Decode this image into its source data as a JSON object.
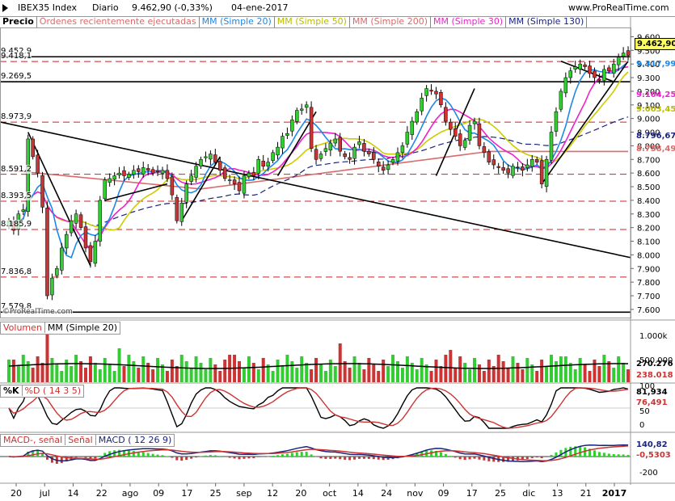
{
  "header": {
    "symbol": "IBEX35 Index",
    "period": "Diario",
    "last": "9.462,90 (-0,33%)",
    "date": "04-ene-2017",
    "site": "www.ProRealTime.com"
  },
  "legend": {
    "precio": "Precio",
    "ordenes": "Órdenes recientemente ejecutadas",
    "mm20": "MM (Simple 20)",
    "mm50": "MM (Simple 50)",
    "mm200": "MM (Simple 200)",
    "mm30": "MM (Simple 30)",
    "mm130": "MM (Simple 130)"
  },
  "colors": {
    "up": "#33cc33",
    "down": "#cc3333",
    "mm20": "#1e88e5",
    "mm50": "#cccc00",
    "mm200": "#d96b6b",
    "mm30": "#ee22cc",
    "mm130": "#1a237e",
    "level": "#cc2222"
  },
  "watermark": "©ProRealTime.com",
  "levels": [
    "9.452,9",
    "9.418,1",
    "9.269,5",
    "8.973,9",
    "8.591,2",
    "8.393,5",
    "8.185,9",
    "7.836,8",
    "7.579,8"
  ],
  "price_tags": {
    "last": "9.462,90",
    "mm20": "9.317,99",
    "mm30": "9.104,25",
    "mm50": "9.003,45",
    "mm130": "8.796,67",
    "mm200": "8.758,49"
  },
  "volume": {
    "title": "Volumen",
    "ma_title": "MM (Simple 20)",
    "axis": [
      "1.000k",
      "500.000"
    ],
    "tags": [
      "270.276",
      "238.018"
    ]
  },
  "stoch": {
    "title": "%K",
    "d_title": "%D ( 14 3 5)",
    "axis": [
      "100",
      "50",
      "0"
    ],
    "tags": [
      "81,934",
      "76,491"
    ]
  },
  "macd": {
    "title": "MACD-, señal",
    "signal_title": "Señal",
    "macd_title": "MACD ( 12 26 9)",
    "axis": [
      "-200"
    ],
    "tags": [
      "140,82",
      "-0,5303"
    ]
  },
  "chart_data": {
    "type": "candlestick",
    "y_ticks": [
      9600,
      9500,
      9400,
      9300,
      9200,
      9100,
      9000,
      8900,
      8800,
      8700,
      8600,
      8500,
      8400,
      8300,
      8200,
      8100,
      8000,
      7900,
      7800,
      7700,
      7600
    ],
    "ylim": [
      7540,
      9650
    ],
    "x_labels": [
      "20",
      "jul",
      "14",
      "22",
      "ago",
      "09",
      "17",
      "25",
      "sep",
      "12",
      "20",
      "oct",
      "14",
      "24",
      "nov",
      "09",
      "17",
      "25",
      "dic",
      "13",
      "21",
      "2017"
    ],
    "closes": [
      8250,
      8180,
      8300,
      8330,
      8850,
      8720,
      8600,
      8350,
      7700,
      7830,
      7900,
      8050,
      8150,
      8250,
      8300,
      8200,
      8050,
      7950,
      8100,
      8400,
      8550,
      8560,
      8580,
      8600,
      8580,
      8590,
      8620,
      8610,
      8640,
      8620,
      8600,
      8610,
      8620,
      8560,
      8440,
      8250,
      8380,
      8520,
      8580,
      8650,
      8700,
      8720,
      8740,
      8680,
      8620,
      8560,
      8550,
      8520,
      8470,
      8580,
      8600,
      8580,
      8700,
      8650,
      8680,
      8750,
      8790,
      8870,
      8890,
      8990,
      9060,
      9070,
      9100,
      8780,
      8700,
      8740,
      8780,
      8820,
      8850,
      8760,
      8720,
      8700,
      8790,
      8830,
      8760,
      8740,
      8700,
      8650,
      8620,
      8660,
      8700,
      8750,
      8800,
      8900,
      8980,
      9050,
      9150,
      9220,
      9200,
      9180,
      9100,
      8980,
      8920,
      8870,
      8800,
      8840,
      8950,
      8980,
      8800,
      8750,
      8680,
      8660,
      8640,
      8620,
      8600,
      8650,
      8640,
      8620,
      8660,
      8700,
      8680,
      8520,
      8700,
      8900,
      9050,
      9200,
      9300,
      9350,
      9380,
      9400,
      9380,
      9330,
      9300,
      9280,
      9360,
      9350,
      9400,
      9450,
      9480,
      9462.9
    ],
    "sma20_last": 9317.99,
    "sma30_last": 9104.25,
    "sma50_last": 9003.45,
    "sma130_last": 8796.67,
    "sma200_last": 8758.49,
    "volume_last": 270276,
    "volume_sma20_last": 238018,
    "stoch_k_last": 81.934,
    "stoch_d_last": 76.491,
    "macd_last": 140.82,
    "macd_hist_last": -0.5303
  }
}
